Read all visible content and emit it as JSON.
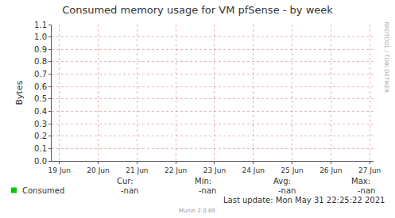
{
  "chart_data": {
    "type": "line",
    "title": "Consumed memory usage for VM pfSense - by week",
    "y_label": "Bytes",
    "categories": [
      "19 Jun",
      "20 Jun",
      "21 Jun",
      "22 Jun",
      "23 Jun",
      "24 Jun",
      "25 Jun",
      "26 Jun",
      "27 Jun"
    ],
    "series": [
      {
        "name": "Consumed",
        "color": "#00cc00",
        "values": [
          null,
          null,
          null,
          null,
          null,
          null,
          null,
          null,
          null
        ],
        "stats": [
          "-nan",
          "-nan",
          "-nan",
          "-nan"
        ]
      }
    ],
    "stats_labels": [
      "Cur:",
      "Min:",
      "Avg:",
      "Max:"
    ],
    "ylim": [
      0,
      1.1
    ],
    "yticks": [
      {
        "value": 0,
        "label": "0.0"
      },
      0.1,
      0.2,
      0.3,
      0.4,
      0.5,
      0.6,
      0.7,
      0.8,
      0.9,
      {
        "value": 1,
        "label": "1.0"
      },
      1.1
    ],
    "grid": true,
    "footer": "Last update: Mon May 31 22:25:22 2021",
    "credit": "Munin 2.0.69",
    "watermark": "RRDTOOL / TOBI OETIKER"
  }
}
